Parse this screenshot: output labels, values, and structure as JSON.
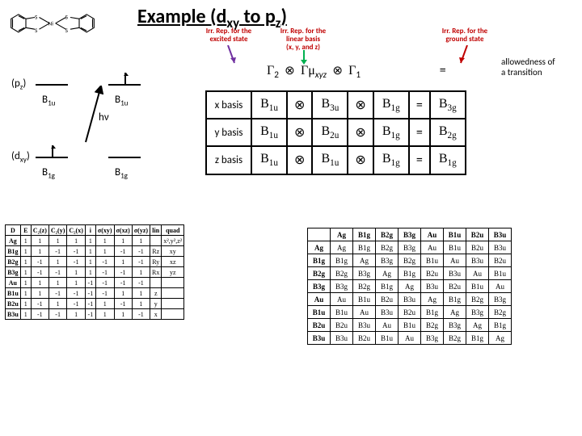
{
  "title_parts": [
    "Example (d",
    "xy",
    " to p",
    "z",
    ")"
  ],
  "annotations": {
    "excited": "Irr. Rep. for the\nexcited state",
    "basis": "Irr. Rep. for the\nlinear basis\n(x, y, and z)",
    "ground": "Irr. Rep. for the\nground state"
  },
  "arrow_colors": {
    "excited": "#7030a0",
    "basis": "#00b050",
    "ground": "#c00000"
  },
  "gamma": {
    "g2": "Γ",
    "g2s": "2",
    "mu": "Γμ",
    "mus": "xyz",
    "g1": "Γ",
    "g1s": "1",
    "eq": "=",
    "tensor": "⊗"
  },
  "allowedness": "allowedness of\na transition",
  "orbitals": {
    "pz": "(p",
    "pzs": "z",
    "pze": ")",
    "dxy": "(d",
    "dxys": "xy",
    "dxye": ")"
  },
  "irr": {
    "b1u": "B",
    "b1us": "1u",
    "b1g": "B",
    "b1gs": "1g",
    "b3u": "B",
    "b3us": "3u",
    "b2u": "B",
    "b2us": "2u",
    "b3g": "B",
    "b3gs": "3g",
    "b2g": "B",
    "b2gs": "2g"
  },
  "hv": "hν",
  "basis_rows": [
    "x basis",
    "y basis",
    "z basis"
  ],
  "char_header": [
    "D",
    "E",
    "C₂(z)",
    "C₂(y)",
    "C₂(x)",
    "i",
    "σ(xy)",
    "σ(xz)",
    "σ(yz)",
    "lin",
    "quad"
  ],
  "char_rownames": [
    "Ag",
    "B1g",
    "B2g",
    "B3g",
    "Au",
    "B1u",
    "B2u",
    "B3u"
  ],
  "char_rows": [
    [
      "1",
      "1",
      "1",
      "1",
      "1",
      "1",
      "1",
      "1",
      "",
      "x²,y²,z²"
    ],
    [
      "1",
      "1",
      "-1",
      "-1",
      "1",
      "1",
      "-1",
      "-1",
      "Rz",
      "xy"
    ],
    [
      "1",
      "-1",
      "1",
      "-1",
      "1",
      "-1",
      "1",
      "-1",
      "Ry",
      "xz"
    ],
    [
      "1",
      "-1",
      "-1",
      "1",
      "1",
      "-1",
      "-1",
      "1",
      "Rx",
      "yz"
    ],
    [
      "1",
      "1",
      "1",
      "1",
      "-1",
      "-1",
      "-1",
      "-1",
      "",
      ""
    ],
    [
      "1",
      "1",
      "-1",
      "-1",
      "-1",
      "-1",
      "1",
      "1",
      "z",
      ""
    ],
    [
      "1",
      "-1",
      "1",
      "-1",
      "-1",
      "1",
      "-1",
      "1",
      "y",
      ""
    ],
    [
      "1",
      "-1",
      "-1",
      "1",
      "-1",
      "1",
      "1",
      "-1",
      "x",
      ""
    ]
  ],
  "prod_header": [
    "",
    "Ag",
    "B1g",
    "B2g",
    "B3g",
    "Au",
    "B1u",
    "B2u",
    "B3u"
  ],
  "prod_rownames": [
    "Ag",
    "B1g",
    "B2g",
    "B3g",
    "Au",
    "B1u",
    "B2u",
    "B3u"
  ],
  "prod_rows": [
    [
      "Ag",
      "B1g",
      "B2g",
      "B3g",
      "Au",
      "B1u",
      "B2u",
      "B3u"
    ],
    [
      "B1g",
      "Ag",
      "B3g",
      "B2g",
      "B1u",
      "Au",
      "B3u",
      "B2u"
    ],
    [
      "B2g",
      "B3g",
      "Ag",
      "B1g",
      "B2u",
      "B3u",
      "Au",
      "B1u"
    ],
    [
      "B3g",
      "B2g",
      "B1g",
      "Ag",
      "B3u",
      "B2u",
      "B1u",
      "Au"
    ],
    [
      "Au",
      "B1u",
      "B2u",
      "B3u",
      "Ag",
      "B1g",
      "B2g",
      "B3g"
    ],
    [
      "B1u",
      "Au",
      "B3u",
      "B2u",
      "B1g",
      "Ag",
      "B3g",
      "B2g"
    ],
    [
      "B2u",
      "B3u",
      "Au",
      "B1u",
      "B2g",
      "B3g",
      "Ag",
      "B1g"
    ],
    [
      "B3u",
      "B2u",
      "B1u",
      "Au",
      "B3g",
      "B2g",
      "B1g",
      "Ag"
    ]
  ]
}
